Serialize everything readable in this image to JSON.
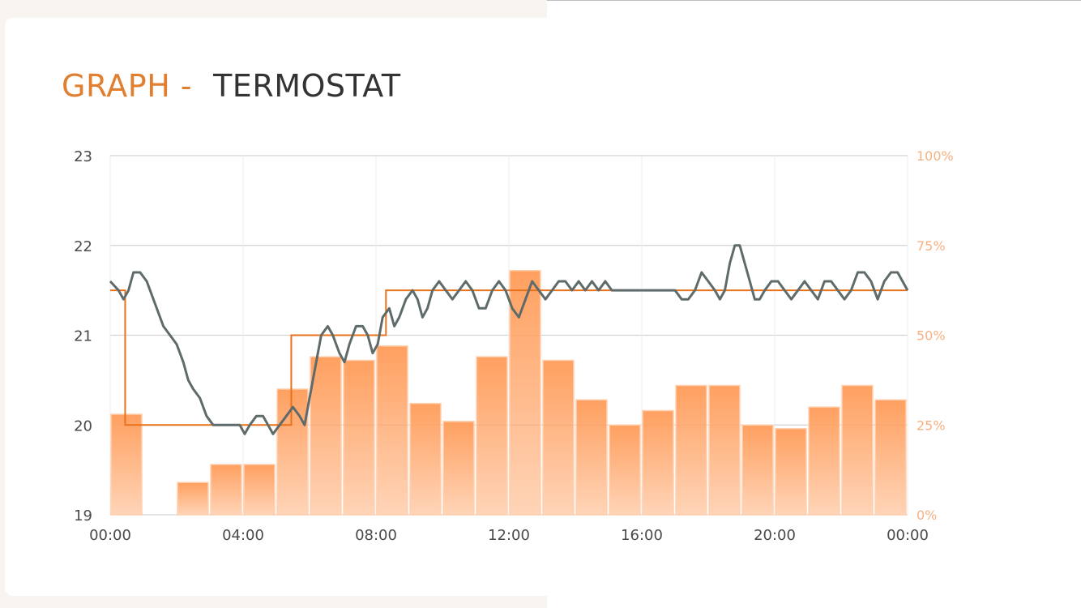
{
  "header": {
    "title_prefix": "GRAPH -",
    "title_name": "TERMOSTAT"
  },
  "chart_data": {
    "type": "bar+line",
    "x_ticks": [
      "00:00",
      "04:00",
      "08:00",
      "12:00",
      "16:00",
      "20:00",
      "00:00"
    ],
    "y_left": {
      "ticks": [
        "19",
        "20",
        "21",
        "22",
        "23"
      ],
      "range": [
        19,
        23
      ]
    },
    "y_right": {
      "ticks": [
        "0%",
        "25%",
        "50%",
        "75%",
        "100%"
      ],
      "range": [
        0,
        100
      ]
    },
    "grid": true,
    "colors": {
      "bars": "#ffa060",
      "temperature": "#5f6b6b",
      "setpoint": "#e8731c"
    },
    "bars_percent": [
      28,
      0,
      9,
      14,
      14,
      35,
      44,
      43,
      47,
      31,
      26,
      44,
      68,
      43,
      32,
      25,
      29,
      36,
      36,
      25,
      24,
      30,
      36,
      32
    ],
    "setpoint_steps": [
      [
        0.0,
        21.5
      ],
      [
        0.45,
        20.0
      ],
      [
        5.45,
        21.0
      ],
      [
        8.3,
        21.5
      ],
      [
        24.0,
        21.5
      ]
    ],
    "temperature": [
      [
        0.0,
        21.6
      ],
      [
        0.25,
        21.5
      ],
      [
        0.4,
        21.4
      ],
      [
        0.55,
        21.5
      ],
      [
        0.7,
        21.7
      ],
      [
        0.9,
        21.7
      ],
      [
        1.1,
        21.6
      ],
      [
        1.3,
        21.4
      ],
      [
        1.6,
        21.1
      ],
      [
        1.8,
        21.0
      ],
      [
        2.0,
        20.9
      ],
      [
        2.2,
        20.7
      ],
      [
        2.35,
        20.5
      ],
      [
        2.5,
        20.4
      ],
      [
        2.7,
        20.3
      ],
      [
        2.9,
        20.1
      ],
      [
        3.1,
        20.0
      ],
      [
        3.4,
        20.0
      ],
      [
        3.7,
        20.0
      ],
      [
        3.9,
        20.0
      ],
      [
        4.05,
        19.9
      ],
      [
        4.2,
        20.0
      ],
      [
        4.4,
        20.1
      ],
      [
        4.6,
        20.1
      ],
      [
        4.75,
        20.0
      ],
      [
        4.9,
        19.9
      ],
      [
        5.1,
        20.0
      ],
      [
        5.3,
        20.1
      ],
      [
        5.5,
        20.2
      ],
      [
        5.7,
        20.1
      ],
      [
        5.85,
        20.0
      ],
      [
        6.0,
        20.3
      ],
      [
        6.2,
        20.7
      ],
      [
        6.35,
        21.0
      ],
      [
        6.55,
        21.1
      ],
      [
        6.7,
        21.0
      ],
      [
        6.9,
        20.8
      ],
      [
        7.05,
        20.7
      ],
      [
        7.2,
        20.9
      ],
      [
        7.4,
        21.1
      ],
      [
        7.6,
        21.1
      ],
      [
        7.75,
        21.0
      ],
      [
        7.9,
        20.8
      ],
      [
        8.05,
        20.9
      ],
      [
        8.2,
        21.2
      ],
      [
        8.4,
        21.3
      ],
      [
        8.55,
        21.1
      ],
      [
        8.7,
        21.2
      ],
      [
        8.9,
        21.4
      ],
      [
        9.1,
        21.5
      ],
      [
        9.25,
        21.4
      ],
      [
        9.4,
        21.2
      ],
      [
        9.55,
        21.3
      ],
      [
        9.7,
        21.5
      ],
      [
        9.9,
        21.6
      ],
      [
        10.1,
        21.5
      ],
      [
        10.3,
        21.4
      ],
      [
        10.5,
        21.5
      ],
      [
        10.7,
        21.6
      ],
      [
        10.9,
        21.5
      ],
      [
        11.1,
        21.3
      ],
      [
        11.3,
        21.3
      ],
      [
        11.5,
        21.5
      ],
      [
        11.7,
        21.6
      ],
      [
        11.9,
        21.5
      ],
      [
        12.1,
        21.3
      ],
      [
        12.3,
        21.2
      ],
      [
        12.5,
        21.4
      ],
      [
        12.7,
        21.6
      ],
      [
        12.9,
        21.5
      ],
      [
        13.1,
        21.4
      ],
      [
        13.3,
        21.5
      ],
      [
        13.5,
        21.6
      ],
      [
        13.7,
        21.6
      ],
      [
        13.9,
        21.5
      ],
      [
        14.1,
        21.6
      ],
      [
        14.3,
        21.5
      ],
      [
        14.5,
        21.6
      ],
      [
        14.7,
        21.5
      ],
      [
        14.9,
        21.6
      ],
      [
        15.1,
        21.5
      ],
      [
        15.6,
        21.5
      ],
      [
        16.0,
        21.5
      ],
      [
        16.2,
        21.5
      ],
      [
        16.5,
        21.5
      ],
      [
        16.8,
        21.5
      ],
      [
        17.0,
        21.5
      ],
      [
        17.2,
        21.4
      ],
      [
        17.4,
        21.4
      ],
      [
        17.6,
        21.5
      ],
      [
        17.8,
        21.7
      ],
      [
        18.0,
        21.6
      ],
      [
        18.2,
        21.5
      ],
      [
        18.35,
        21.4
      ],
      [
        18.5,
        21.5
      ],
      [
        18.65,
        21.8
      ],
      [
        18.8,
        22.0
      ],
      [
        18.95,
        22.0
      ],
      [
        19.1,
        21.8
      ],
      [
        19.25,
        21.6
      ],
      [
        19.4,
        21.4
      ],
      [
        19.55,
        21.4
      ],
      [
        19.7,
        21.5
      ],
      [
        19.9,
        21.6
      ],
      [
        20.1,
        21.6
      ],
      [
        20.3,
        21.5
      ],
      [
        20.5,
        21.4
      ],
      [
        20.7,
        21.5
      ],
      [
        20.9,
        21.6
      ],
      [
        21.1,
        21.5
      ],
      [
        21.3,
        21.4
      ],
      [
        21.5,
        21.6
      ],
      [
        21.7,
        21.6
      ],
      [
        21.9,
        21.5
      ],
      [
        22.1,
        21.4
      ],
      [
        22.3,
        21.5
      ],
      [
        22.5,
        21.7
      ],
      [
        22.7,
        21.7
      ],
      [
        22.9,
        21.6
      ],
      [
        23.1,
        21.4
      ],
      [
        23.3,
        21.6
      ],
      [
        23.5,
        21.7
      ],
      [
        23.7,
        21.7
      ],
      [
        23.85,
        21.6
      ],
      [
        24.0,
        21.5
      ]
    ]
  }
}
